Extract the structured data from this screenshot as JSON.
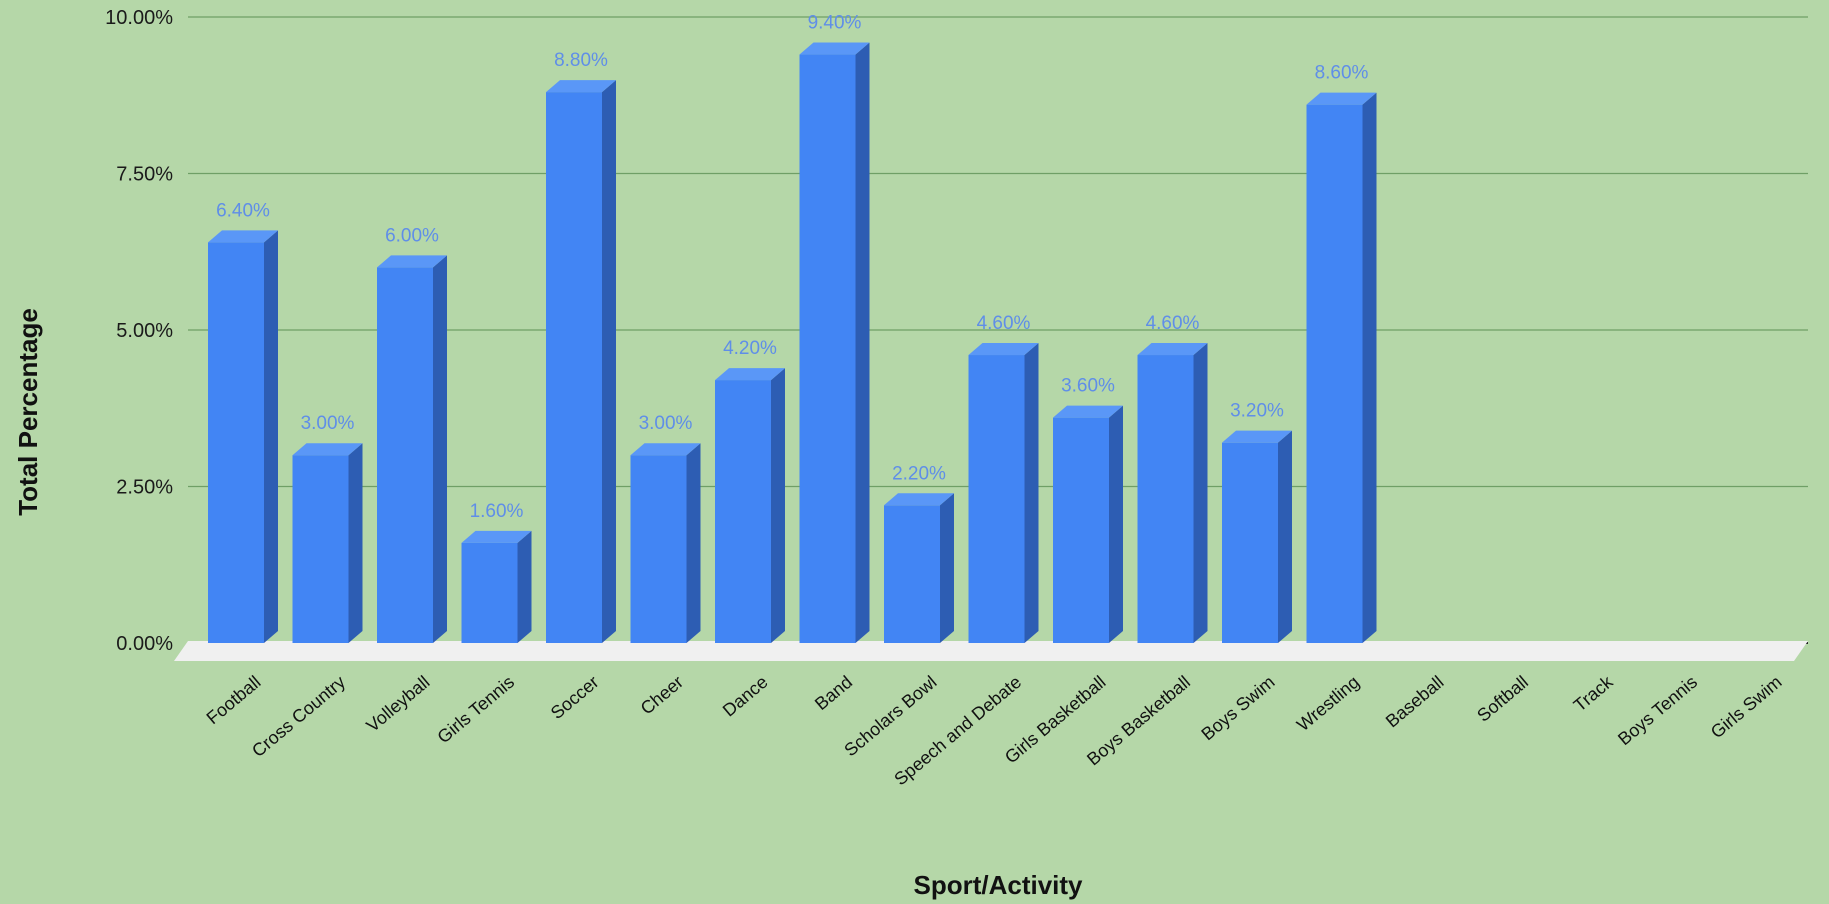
{
  "colors": {
    "background": "#b5d7a8",
    "gridline": "#6f9f66",
    "bar_front": "#4285f4",
    "bar_side": "#2d5db3",
    "bar_top": "#5a97f7",
    "floor": "#f0f0f0",
    "data_label": "#5f8ee8"
  },
  "chart_data": {
    "type": "bar",
    "style": "3d",
    "title": "",
    "xlabel": "Sport/Activity",
    "ylabel": "Total Percentage",
    "ylim": [
      0,
      10
    ],
    "grid": true,
    "legend": "none",
    "yticks": [
      {
        "value": 0,
        "label": "0.00%"
      },
      {
        "value": 2.5,
        "label": "2.50%"
      },
      {
        "value": 5,
        "label": "5.00%"
      },
      {
        "value": 7.5,
        "label": "7.50%"
      },
      {
        "value": 10,
        "label": "10.00%"
      }
    ],
    "categories": [
      "Football",
      "Cross Country",
      "Volleyball",
      "Girls Tennis",
      "Soccer",
      "Cheer",
      "Dance",
      "Band",
      "Scholars Bowl",
      "Speech and Debate",
      "Girls Basketball",
      "Boys Basketball",
      "Boys Swim",
      "Wrestling",
      "Baseball",
      "Softball",
      "Track",
      "Boys Tennis",
      "Girls Swim"
    ],
    "values": [
      6.4,
      3.0,
      6.0,
      1.6,
      8.8,
      3.0,
      4.2,
      9.4,
      2.2,
      4.6,
      3.6,
      4.6,
      3.2,
      8.6,
      null,
      null,
      null,
      null,
      null
    ],
    "data_labels": [
      "6.40%",
      "3.00%",
      "6.00%",
      "1.60%",
      "8.80%",
      "3.00%",
      "4.20%",
      "9.40%",
      "2.20%",
      "4.60%",
      "3.60%",
      "4.60%",
      "3.20%",
      "8.60%",
      "",
      "",
      "",
      "",
      ""
    ]
  }
}
